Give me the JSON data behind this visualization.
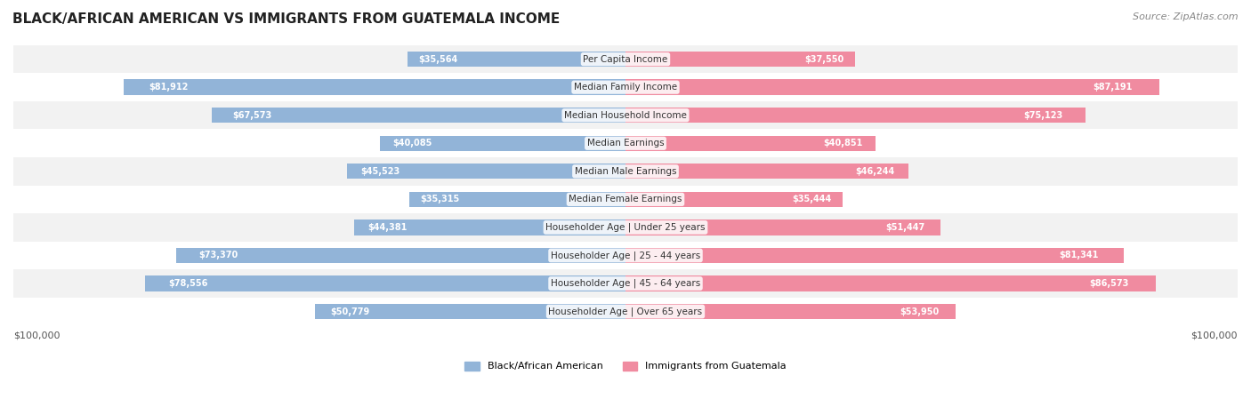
{
  "title": "BLACK/AFRICAN AMERICAN VS IMMIGRANTS FROM GUATEMALA INCOME",
  "source": "Source: ZipAtlas.com",
  "categories": [
    "Per Capita Income",
    "Median Family Income",
    "Median Household Income",
    "Median Earnings",
    "Median Male Earnings",
    "Median Female Earnings",
    "Householder Age | Under 25 years",
    "Householder Age | 25 - 44 years",
    "Householder Age | 45 - 64 years",
    "Householder Age | Over 65 years"
  ],
  "black_values": [
    35564,
    81912,
    67573,
    40085,
    45523,
    35315,
    44381,
    73370,
    78556,
    50779
  ],
  "immigrant_values": [
    37550,
    87191,
    75123,
    40851,
    46244,
    35444,
    51447,
    81341,
    86573,
    53950
  ],
  "black_labels": [
    "$35,564",
    "$81,912",
    "$67,573",
    "$40,085",
    "$45,523",
    "$35,315",
    "$44,381",
    "$73,370",
    "$78,556",
    "$50,779"
  ],
  "immigrant_labels": [
    "$37,550",
    "$87,191",
    "$75,123",
    "$40,851",
    "$46,244",
    "$35,444",
    "$51,447",
    "$81,341",
    "$86,573",
    "$53,950"
  ],
  "max_value": 100000,
  "blue_color": "#92b4d8",
  "pink_color": "#f08ba0",
  "blue_label_color_light": "#555555",
  "blue_label_color_dark": "#ffffff",
  "pink_label_color_light": "#555555",
  "pink_label_color_dark": "#ffffff",
  "bar_row_bg": "#f0f0f0",
  "label_blue": "Black/African American",
  "label_pink": "Immigrants from Guatemala",
  "axis_label_left": "$100,000",
  "axis_label_right": "$100,000",
  "threshold_for_inside_label": 20000
}
